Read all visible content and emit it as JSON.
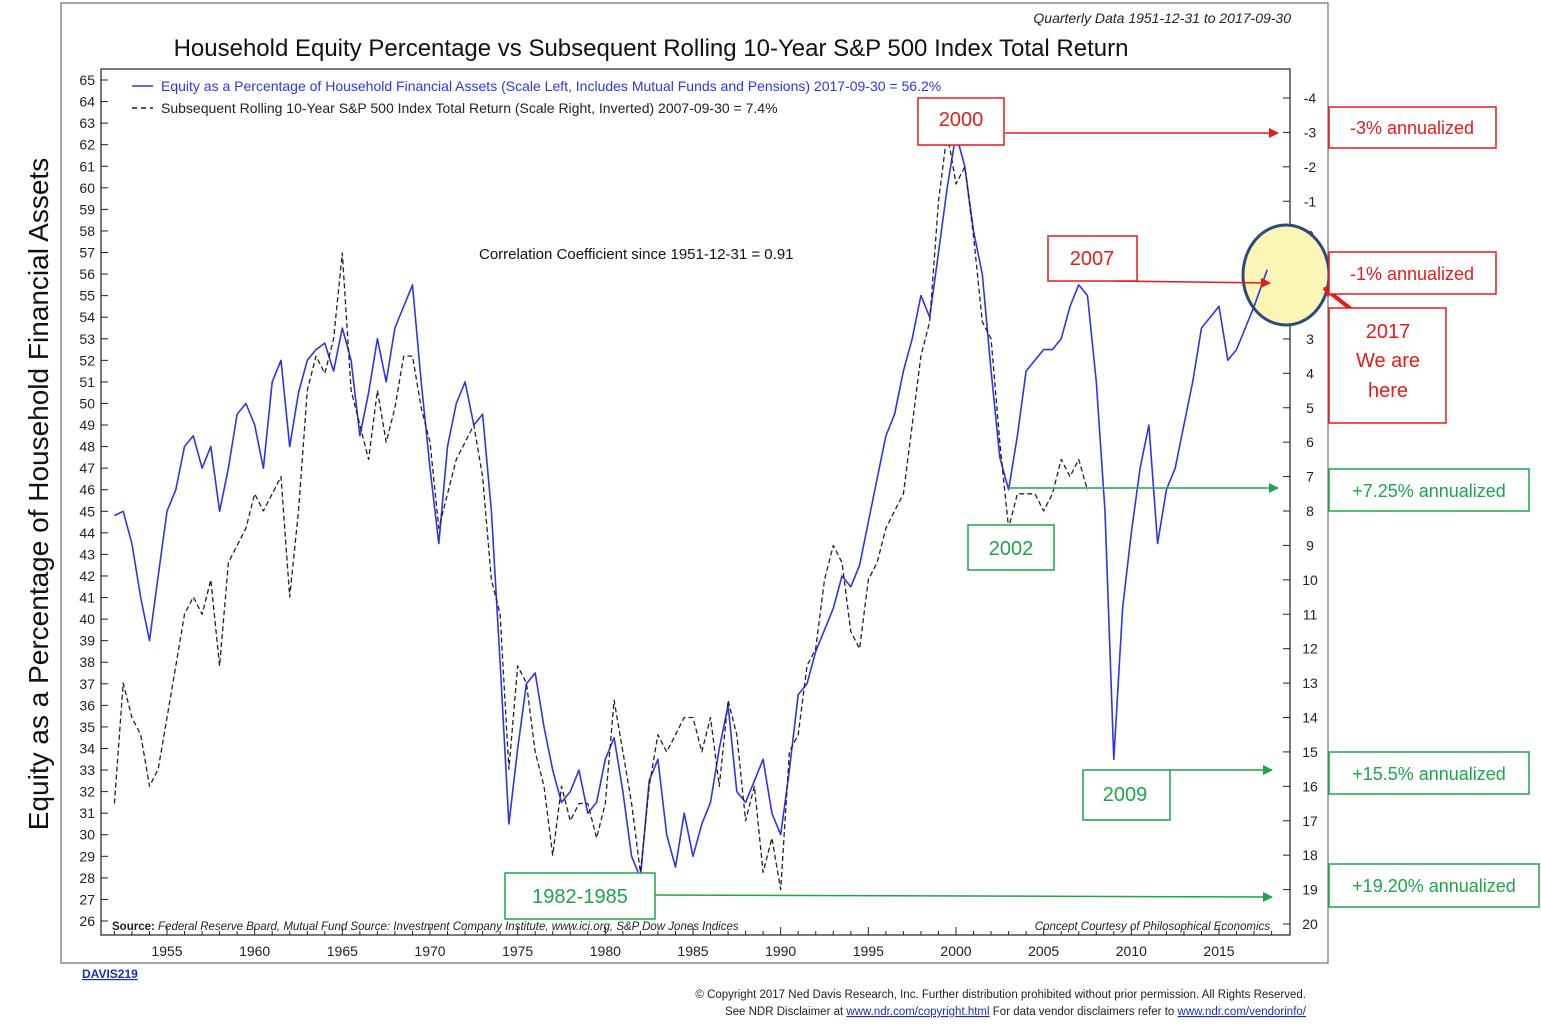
{
  "chart_data": {
    "type": "line",
    "title": "Household Equity Percentage vs Subsequent Rolling 10-Year S&P 500 Index Total Return",
    "subtitle": "Quarterly Data 1951-12-31 to 2017-09-30",
    "ylabel": "Equity as a Percentage of Household Financial Assets",
    "ylim": [
      26,
      65
    ],
    "y2lim": [
      -4.5,
      20.2
    ],
    "y2_inverted": true,
    "xlim": [
      1951.5,
      2019.5
    ],
    "x_ticks": [
      1955,
      1960,
      1965,
      1970,
      1975,
      1980,
      1985,
      1990,
      1995,
      2000,
      2005,
      2010,
      2015
    ],
    "y_ticks": [
      26,
      27,
      28,
      29,
      30,
      31,
      32,
      33,
      34,
      35,
      36,
      37,
      38,
      39,
      40,
      41,
      42,
      43,
      44,
      45,
      46,
      47,
      48,
      49,
      50,
      51,
      52,
      53,
      54,
      55,
      56,
      57,
      58,
      59,
      60,
      61,
      62,
      63,
      64,
      65
    ],
    "y2_ticks": [
      -4,
      -3,
      -2,
      -1,
      0,
      1,
      2,
      3,
      4,
      5,
      6,
      7,
      8,
      9,
      10,
      11,
      12,
      13,
      14,
      15,
      16,
      17,
      18,
      19,
      20
    ],
    "grid": false,
    "legend_position": "top-left",
    "series": [
      {
        "name": "Equity as a Percentage of Household Financial Assets (Scale Left, Includes Mutual Funds and Pensions) 2017-09-30 = 56.2%",
        "axis": "left",
        "color": "#2f35e6",
        "style": "solid",
        "x": [
          1952.0,
          1952.5,
          1953.0,
          1953.5,
          1954.0,
          1954.5,
          1955.0,
          1955.5,
          1956.0,
          1956.5,
          1957.0,
          1957.5,
          1958.0,
          1958.5,
          1959.0,
          1959.5,
          1960.0,
          1960.5,
          1961.0,
          1961.5,
          1962.0,
          1962.5,
          1963.0,
          1963.5,
          1964.0,
          1964.5,
          1965.0,
          1965.5,
          1966.0,
          1966.5,
          1967.0,
          1967.5,
          1968.0,
          1968.5,
          1969.0,
          1969.5,
          1970.0,
          1970.5,
          1971.0,
          1971.5,
          1972.0,
          1972.5,
          1973.0,
          1973.5,
          1974.0,
          1974.5,
          1975.0,
          1975.5,
          1976.0,
          1976.5,
          1977.0,
          1977.5,
          1978.0,
          1978.5,
          1979.0,
          1979.5,
          1980.0,
          1980.5,
          1981.0,
          1981.5,
          1982.0,
          1982.5,
          1983.0,
          1983.5,
          1984.0,
          1984.5,
          1985.0,
          1985.5,
          1986.0,
          1986.5,
          1987.0,
          1987.5,
          1988.0,
          1988.5,
          1989.0,
          1989.5,
          1990.0,
          1990.5,
          1991.0,
          1991.5,
          1992.0,
          1992.5,
          1993.0,
          1993.5,
          1994.0,
          1994.5,
          1995.0,
          1995.5,
          1996.0,
          1996.5,
          1997.0,
          1997.5,
          1998.0,
          1998.5,
          1999.0,
          1999.5,
          2000.0,
          2000.5,
          2001.0,
          2001.5,
          2002.0,
          2002.5,
          2003.0,
          2003.5,
          2004.0,
          2004.5,
          2005.0,
          2005.5,
          2006.0,
          2006.5,
          2007.0,
          2007.5,
          2008.0,
          2008.5,
          2009.0,
          2009.5,
          2010.0,
          2010.5,
          2011.0,
          2011.5,
          2012.0,
          2012.5,
          2013.0,
          2013.5,
          2014.0,
          2014.5,
          2015.0,
          2015.5,
          2016.0,
          2016.5,
          2017.0,
          2017.75
        ],
        "values": [
          44.8,
          45.0,
          43.5,
          41.0,
          39.0,
          42.0,
          45.0,
          46.0,
          48.0,
          48.5,
          47.0,
          48.0,
          45.0,
          47.0,
          49.5,
          50.0,
          49.0,
          47.0,
          51.0,
          52.0,
          48.0,
          50.5,
          52.0,
          52.5,
          52.8,
          51.5,
          53.5,
          52.0,
          48.5,
          50.5,
          53.0,
          51.0,
          53.5,
          54.5,
          55.5,
          51.0,
          47.0,
          43.5,
          48.0,
          50.0,
          51.0,
          49.0,
          49.5,
          45.0,
          38.0,
          30.5,
          34.0,
          37.0,
          37.5,
          35.0,
          33.0,
          31.5,
          32.0,
          33.0,
          31.0,
          31.5,
          33.5,
          34.5,
          32.0,
          29.0,
          28.0,
          32.5,
          33.5,
          30.0,
          28.5,
          31.0,
          29.0,
          30.5,
          31.5,
          34.0,
          36.0,
          32.0,
          31.5,
          32.5,
          33.5,
          31.0,
          30.0,
          33.0,
          36.5,
          37.0,
          38.5,
          39.5,
          40.5,
          42.0,
          41.5,
          42.5,
          44.5,
          46.5,
          48.5,
          49.5,
          51.5,
          53.0,
          55.0,
          54.0,
          57.0,
          60.0,
          62.5,
          61.0,
          58.0,
          56.0,
          51.5,
          47.5,
          46.0,
          48.5,
          51.5,
          52.0,
          52.5,
          52.5,
          53.0,
          54.5,
          55.5,
          55.0,
          51.0,
          45.0,
          33.5,
          40.5,
          44.0,
          47.0,
          49.0,
          43.5,
          46.0,
          47.0,
          49.0,
          51.0,
          53.5,
          54.0,
          54.5,
          52.0,
          52.5,
          53.5,
          54.5,
          56.2
        ]
      },
      {
        "name": "Subsequent Rolling 10-Year S&P 500 Index Total Return (Scale Right, Inverted) 2007-09-30 = 7.4%",
        "axis": "right",
        "color": "#222222",
        "style": "dashed",
        "x": [
          1952.0,
          1952.5,
          1953.0,
          1953.5,
          1954.0,
          1954.5,
          1955.0,
          1955.5,
          1956.0,
          1956.5,
          1957.0,
          1957.5,
          1958.0,
          1958.5,
          1959.0,
          1959.5,
          1960.0,
          1960.5,
          1961.0,
          1961.5,
          1962.0,
          1962.5,
          1963.0,
          1963.5,
          1964.0,
          1964.5,
          1965.0,
          1965.5,
          1966.0,
          1966.5,
          1967.0,
          1967.5,
          1968.0,
          1968.5,
          1969.0,
          1969.5,
          1970.0,
          1970.5,
          1971.0,
          1971.5,
          1972.0,
          1972.5,
          1973.0,
          1973.5,
          1974.0,
          1974.5,
          1975.0,
          1975.5,
          1976.0,
          1976.5,
          1977.0,
          1977.5,
          1978.0,
          1978.5,
          1979.0,
          1979.5,
          1980.0,
          1980.5,
          1981.0,
          1981.5,
          1982.0,
          1982.5,
          1983.0,
          1983.5,
          1984.0,
          1984.5,
          1985.0,
          1985.5,
          1986.0,
          1986.5,
          1987.0,
          1987.5,
          1988.0,
          1988.5,
          1989.0,
          1989.5,
          1990.0,
          1990.5,
          1991.0,
          1991.5,
          1992.0,
          1992.5,
          1993.0,
          1993.5,
          1994.0,
          1994.5,
          1995.0,
          1995.5,
          1996.0,
          1996.5,
          1997.0,
          1997.5,
          1998.0,
          1998.5,
          1999.0,
          1999.5,
          2000.0,
          2000.5,
          2001.0,
          2001.5,
          2002.0,
          2002.5,
          2003.0,
          2003.5,
          2004.0,
          2004.5,
          2005.0,
          2005.5,
          2006.0,
          2006.5,
          2007.0,
          2007.5
        ],
        "values": [
          16.5,
          13.0,
          14.0,
          14.5,
          16.0,
          15.5,
          14.0,
          12.5,
          11.0,
          10.5,
          11.0,
          10.0,
          12.5,
          9.5,
          9.0,
          8.5,
          7.5,
          8.0,
          7.5,
          7.0,
          10.5,
          8.0,
          4.5,
          3.5,
          4.0,
          3.0,
          0.5,
          4.5,
          5.5,
          6.5,
          4.5,
          6.0,
          5.0,
          3.5,
          3.5,
          5.0,
          6.0,
          8.5,
          7.5,
          6.5,
          6.0,
          5.5,
          7.0,
          10.0,
          11.0,
          15.5,
          12.5,
          13.0,
          15.0,
          16.0,
          18.0,
          16.0,
          17.0,
          16.5,
          16.5,
          17.5,
          16.5,
          13.5,
          15.0,
          16.5,
          18.5,
          16.0,
          14.5,
          15.0,
          14.5,
          14.0,
          14.0,
          15.0,
          14.0,
          16.0,
          13.5,
          14.5,
          17.0,
          16.0,
          18.5,
          17.5,
          19.0,
          15.0,
          14.5,
          12.5,
          12.0,
          10.0,
          9.0,
          9.5,
          11.5,
          12.0,
          10.0,
          9.5,
          8.5,
          8.0,
          7.5,
          5.5,
          3.5,
          2.5,
          -1.0,
          -3.0,
          -1.5,
          -2.0,
          0.0,
          2.5,
          3.0,
          6.0,
          8.5,
          7.5,
          7.5,
          7.5,
          8.0,
          7.5,
          6.5,
          7.0,
          6.5,
          7.4
        ]
      }
    ],
    "annotation_text": "Correlation Coefficient since 1951-12-31 = 0.91"
  },
  "legend": {
    "series1": "Equity as a Percentage of Household Financial Assets (Scale Left, Includes Mutual Funds and Pensions) 2017-09-30 = 56.2%",
    "series2": "Subsequent Rolling 10-Year S&P 500 Index Total Return (Scale Right, Inverted) 2007-09-30 = 7.4%"
  },
  "footer": {
    "source_label": "Source:",
    "source_text": "Federal Reserve Board, Mutual Fund Source: Investment Company Institute, www.ici.org, S&P Dow Jones Indices",
    "concept": "Concept Courtesy of Philosophical Economics",
    "davis": "DAVIS219",
    "copyright": "© Copyright 2017 Ned Davis Research, Inc. Further distribution prohibited without prior permission. All Rights Reserved.",
    "disclaimer_prefix": "See NDR Disclaimer at",
    "disclaimer_link1": "www.ndr.com/copyright.html",
    "disclaimer_middle": "For data vendor disclaimers refer to",
    "disclaimer_link2": "www.ndr.com/vendorinfo/"
  },
  "annotations": {
    "y2000": "2000",
    "y2007": "2007",
    "y2002": "2002",
    "y2009": "2009",
    "y1982": "1982-1985",
    "minus3": "-3% annualized",
    "minus1": "-1% annualized",
    "plus725": "+7.25% annualized",
    "plus155": "+15.5% annualized",
    "plus1920": "+19.20% annualized",
    "here_line1": "2017",
    "here_line2": "We are",
    "here_line3": "here"
  },
  "colors": {
    "red": "#e31b1b",
    "green": "#1ca54a",
    "blue_line": "#2f35e6",
    "highlight_fill": "#fbf6b5",
    "highlight_stroke": "#2e4a7d"
  }
}
